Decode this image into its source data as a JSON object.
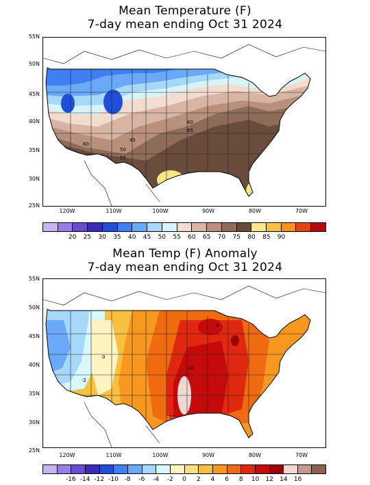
{
  "panels": [
    {
      "title_line1": "Mean Temperature (F)",
      "title_line2": "7-day mean ending Oct 31 2024",
      "lat_labels": [
        "55N",
        "50N",
        "45N",
        "40N",
        "35N",
        "30N",
        "25N"
      ],
      "lon_labels": [
        "120W",
        "110W",
        "100W",
        "90W",
        "80W",
        "70W"
      ],
      "colorbar": {
        "colors": [
          "#c8b4f0",
          "#9a7ee8",
          "#6a4cd2",
          "#3a2cb4",
          "#1f4fd8",
          "#3f7ff0",
          "#6aa8f8",
          "#a6d8fa",
          "#d8f4f8",
          "#f2dcd0",
          "#d8b4a4",
          "#b8907c",
          "#8e6c5a",
          "#6a4c3c",
          "#f8e884",
          "#f8c040",
          "#f8901c",
          "#e44414",
          "#b40a0a"
        ],
        "labels": [
          "20",
          "25",
          "30",
          "35",
          "40",
          "45",
          "50",
          "55",
          "60",
          "65",
          "70",
          "75",
          "80",
          "85",
          "90"
        ]
      },
      "contour_labels": [
        "60",
        "65",
        "45",
        "50",
        "55",
        "60"
      ]
    },
    {
      "title_line1": "Mean Temp (F) Anomaly",
      "title_line2": "7-day mean ending Oct 31 2024",
      "lat_labels": [
        "55N",
        "50N",
        "45N",
        "40N",
        "35N",
        "30N",
        "25N"
      ],
      "lon_labels": [
        "120W",
        "110W",
        "100W",
        "90W",
        "80W",
        "70W"
      ],
      "colorbar": {
        "colors": [
          "#c8b4f0",
          "#9a7ee8",
          "#6a4cd2",
          "#3a2cb4",
          "#1f4fd8",
          "#3f7ff0",
          "#6aa8f8",
          "#a6d8fa",
          "#d8f8fa",
          "#fcf4c0",
          "#f8e080",
          "#f8c040",
          "#f89820",
          "#f06a10",
          "#e02810",
          "#c40a0a",
          "#9c0404",
          "#f0d8d0",
          "#c49a8e",
          "#8e6050"
        ],
        "labels": [
          "-16",
          "-14",
          "-12",
          "-10",
          "-8",
          "-6",
          "-4",
          "-2",
          "0",
          "2",
          "4",
          "6",
          "8",
          "10",
          "12",
          "14",
          "16"
        ]
      },
      "contour_labels": [
        "6",
        "10",
        "12",
        "0",
        "-2"
      ]
    }
  ]
}
